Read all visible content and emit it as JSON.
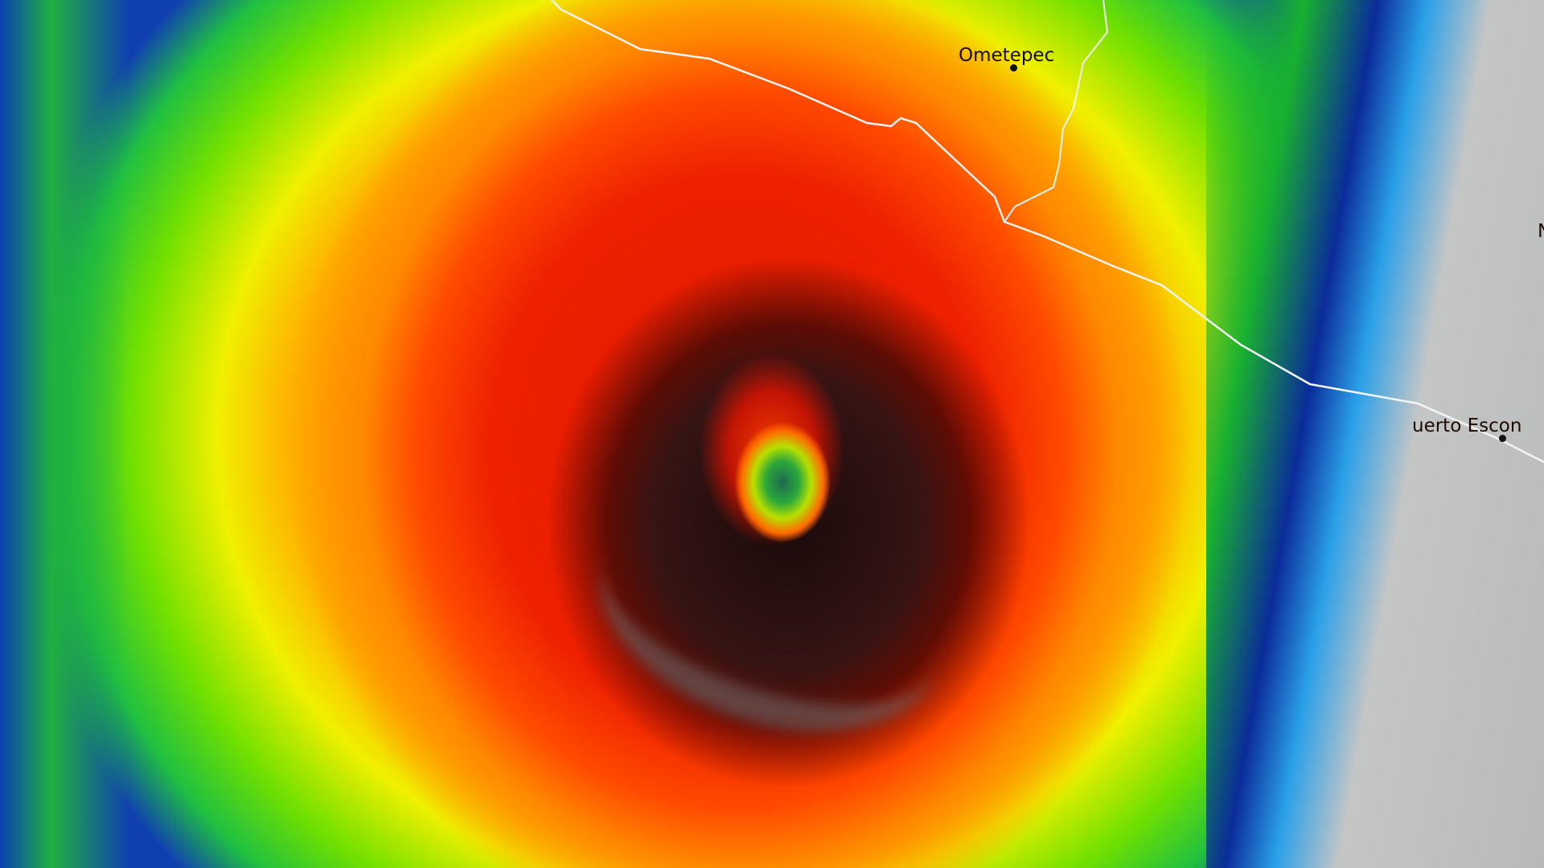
{
  "map": {
    "type": "infrared satellite imagery",
    "places": [
      {
        "name": "Ometepec"
      },
      {
        "name": "uerto Escon"
      },
      {
        "name": "N"
      }
    ],
    "colors": {
      "coldest_cloud_tops": "#1a1a1a",
      "very_cold": "#e01800",
      "cold": "#ffb000",
      "moderate": "#20c040",
      "warm": "#0a2c9a",
      "clear": "#c0c2c2",
      "coastline": "#ffffff"
    }
  }
}
